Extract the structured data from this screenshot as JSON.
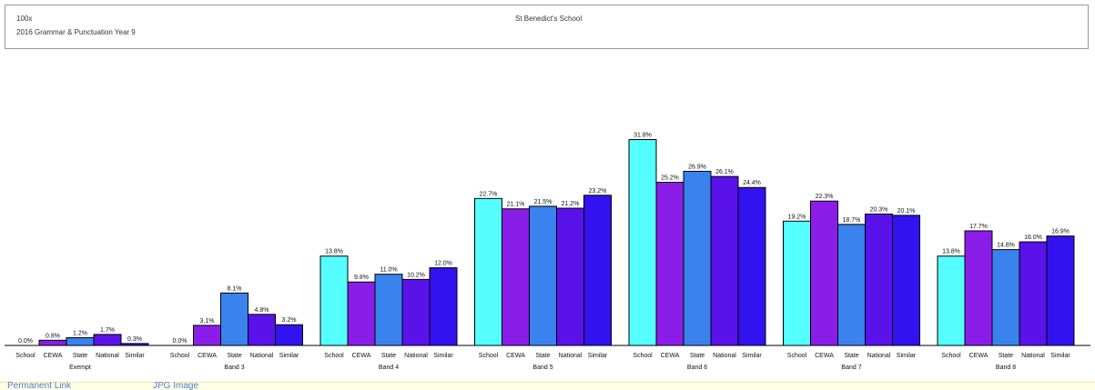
{
  "header": {
    "code": "100x",
    "test_name": "2016 Grammar & Punctuation Year 9",
    "school_name": "St Benedict's School"
  },
  "footer": {
    "permanent_link": "Permanent Link",
    "jpg_image": "JPG Image"
  },
  "colors": {
    "School": "#55ffff",
    "CEWA": "#8a1ee8",
    "State": "#3a82ee",
    "National": "#5a12ea",
    "Similar": "#3212ee"
  },
  "chart_data": {
    "type": "bar",
    "title": "",
    "xlabel": "",
    "ylabel": "",
    "ylim": [
      0,
      33
    ],
    "grid": false,
    "groups": [
      "Exempt",
      "Band 3",
      "Band 4",
      "Band 5",
      "Band 6",
      "Band 7",
      "Band 8"
    ],
    "series_order": [
      "School",
      "CEWA",
      "State",
      "National",
      "Similar"
    ],
    "values": {
      "Exempt": [
        0.0,
        0.8,
        1.2,
        1.7,
        0.3
      ],
      "Band 3": [
        0.0,
        3.1,
        8.1,
        4.8,
        3.2
      ],
      "Band 4": [
        13.8,
        9.8,
        11.0,
        10.2,
        12.0
      ],
      "Band 5": [
        22.7,
        21.1,
        21.5,
        21.2,
        23.2
      ],
      "Band 6": [
        31.8,
        25.2,
        26.9,
        26.1,
        24.4
      ],
      "Band 7": [
        19.2,
        22.3,
        18.7,
        20.3,
        20.1
      ],
      "Band 8": [
        13.8,
        17.7,
        14.8,
        16.0,
        16.9
      ]
    },
    "value_labels": {
      "Exempt": [
        "0.0%",
        "0.8%",
        "1.2%",
        "1.7%",
        "0.3%"
      ],
      "Band 3": [
        "0.0%",
        "3.1%",
        "8.1%",
        "4.8%",
        "3.2%"
      ],
      "Band 4": [
        "13.8%",
        "9.8%",
        "11.0%",
        "10.2%",
        "12.0%"
      ],
      "Band 5": [
        "22.7%",
        "21.1%",
        "21.5%",
        "21.2%",
        "23.2%"
      ],
      "Band 6": [
        "31.8%",
        "25.2%",
        "26.9%",
        "26.1%",
        "24.4%"
      ],
      "Band 7": [
        "19.2%",
        "22.3%",
        "18.7%",
        "20.3%",
        "20.1%"
      ],
      "Band 8": [
        "13.8%",
        "17.7%",
        "14.8%",
        "16.0%",
        "16.9%"
      ]
    }
  }
}
